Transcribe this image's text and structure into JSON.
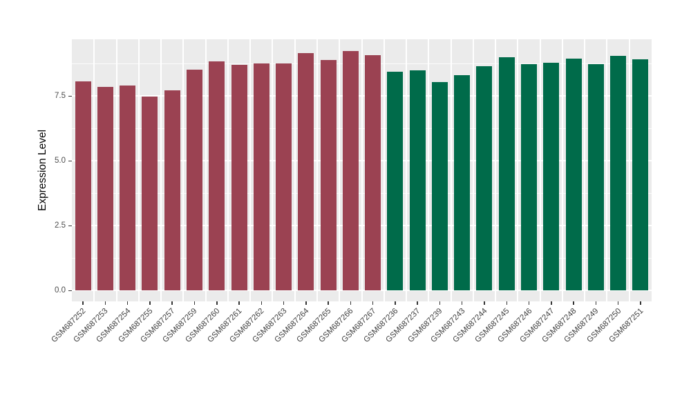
{
  "chart_data": {
    "type": "bar",
    "title": "",
    "xlabel": "",
    "ylabel": "Expression Level",
    "legend_position": "none",
    "grid": true,
    "panel_background": "#EBEBEB",
    "grid_color": "#FFFFFF",
    "axis_text_color": "#4D4D4D",
    "ylim": [
      0,
      9.7
    ],
    "yticks": [
      {
        "label": "0.0",
        "value": 0.0
      },
      {
        "label": "2.5",
        "value": 2.5
      },
      {
        "label": "5.0",
        "value": 5.0
      },
      {
        "label": "7.5",
        "value": 7.5
      }
    ],
    "minor_yticks": [
      1.25,
      3.75,
      6.25,
      8.75
    ],
    "bar_colors": {
      "maroon": "#9B4252",
      "green": "#006B4A"
    },
    "bars": [
      {
        "label": "GSM687252",
        "value": 8.06,
        "group": "maroon"
      },
      {
        "label": "GSM687253",
        "value": 7.87,
        "group": "maroon"
      },
      {
        "label": "GSM687254",
        "value": 7.9,
        "group": "maroon"
      },
      {
        "label": "GSM687255",
        "value": 7.48,
        "group": "maroon"
      },
      {
        "label": "GSM687257",
        "value": 7.72,
        "group": "maroon"
      },
      {
        "label": "GSM687259",
        "value": 8.52,
        "group": "maroon"
      },
      {
        "label": "GSM687260",
        "value": 8.84,
        "group": "maroon"
      },
      {
        "label": "GSM687261",
        "value": 8.7,
        "group": "maroon"
      },
      {
        "label": "GSM687262",
        "value": 8.76,
        "group": "maroon"
      },
      {
        "label": "GSM687263",
        "value": 8.76,
        "group": "maroon"
      },
      {
        "label": "GSM687264",
        "value": 9.17,
        "group": "maroon"
      },
      {
        "label": "GSM687265",
        "value": 8.89,
        "group": "maroon"
      },
      {
        "label": "GSM687266",
        "value": 9.24,
        "group": "maroon"
      },
      {
        "label": "GSM687267",
        "value": 9.07,
        "group": "maroon"
      },
      {
        "label": "GSM687236",
        "value": 8.44,
        "group": "green"
      },
      {
        "label": "GSM687237",
        "value": 8.51,
        "group": "green"
      },
      {
        "label": "GSM687239",
        "value": 8.05,
        "group": "green"
      },
      {
        "label": "GSM687243",
        "value": 8.31,
        "group": "green"
      },
      {
        "label": "GSM687244",
        "value": 8.66,
        "group": "green"
      },
      {
        "label": "GSM687245",
        "value": 8.99,
        "group": "green"
      },
      {
        "label": "GSM687246",
        "value": 8.74,
        "group": "green"
      },
      {
        "label": "GSM687247",
        "value": 8.8,
        "group": "green"
      },
      {
        "label": "GSM687248",
        "value": 8.96,
        "group": "green"
      },
      {
        "label": "GSM687249",
        "value": 8.74,
        "group": "green"
      },
      {
        "label": "GSM687250",
        "value": 9.05,
        "group": "green"
      },
      {
        "label": "GSM687251",
        "value": 8.93,
        "group": "green"
      }
    ]
  }
}
